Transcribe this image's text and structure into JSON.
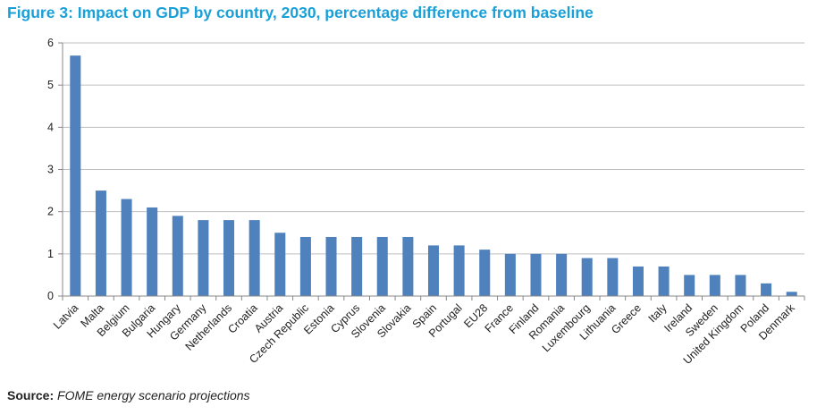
{
  "title": "Figure 3: Impact on GDP by country, 2030, percentage difference from baseline",
  "source_label": "Source:",
  "source_text": "FOME energy scenario projections",
  "colors": {
    "title": "#1aa0d8",
    "bar": "#4f81bd",
    "grid": "#bfbfbf"
  },
  "chart_data": {
    "type": "bar",
    "title": "Figure 3: Impact on GDP by country, 2030, percentage difference from baseline",
    "xlabel": "",
    "ylabel": "",
    "ylim": [
      0,
      6
    ],
    "yticks": [
      0,
      1,
      2,
      3,
      4,
      5,
      6
    ],
    "grid": true,
    "legend": "none",
    "categories": [
      "Latvia",
      "Malta",
      "Belgium",
      "Bulgaria",
      "Hungary",
      "Germany",
      "Netherlands",
      "Croatia",
      "Austria",
      "Czech Republic",
      "Estonia",
      "Cyprus",
      "Slovenia",
      "Slovakia",
      "Spain",
      "Portugal",
      "EU28",
      "France",
      "Finland",
      "Romania",
      "Luxembourg",
      "Lithuania",
      "Greece",
      "Italy",
      "Ireland",
      "Sweden",
      "United Kingdom",
      "Poland",
      "Denmark"
    ],
    "values": [
      5.7,
      2.5,
      2.3,
      2.1,
      1.9,
      1.8,
      1.8,
      1.8,
      1.5,
      1.4,
      1.4,
      1.4,
      1.4,
      1.4,
      1.2,
      1.2,
      1.1,
      1.0,
      1.0,
      1.0,
      0.9,
      0.9,
      0.7,
      0.7,
      0.5,
      0.5,
      0.5,
      0.3,
      0.1
    ]
  }
}
